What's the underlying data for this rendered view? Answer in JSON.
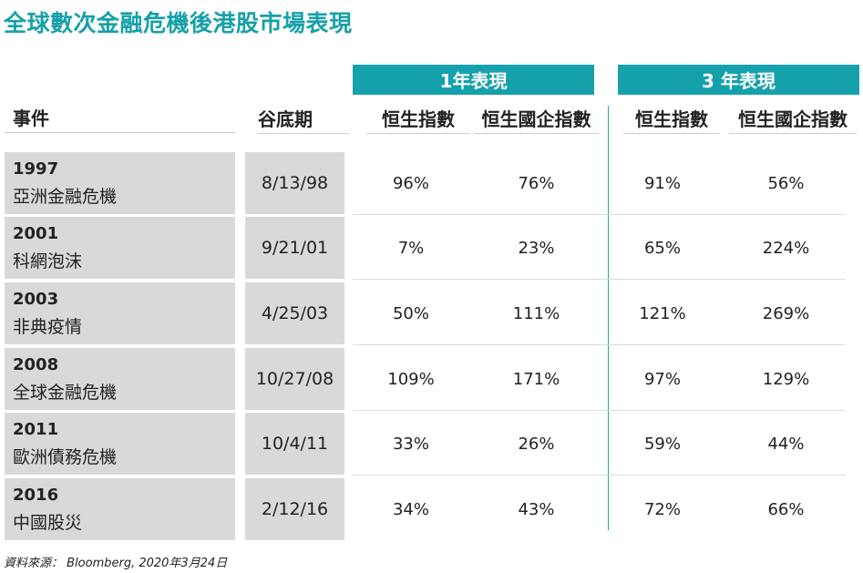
{
  "title": "全球數次金融危機後港股市場表現",
  "group_headers": [
    "1年表現",
    "3 年表現"
  ],
  "columns": {
    "event": "事件",
    "trough": "谷底期",
    "hsi_1y": "恒生指數",
    "hscei_1y": "恒生國企指數",
    "hsi_3y": "恒生指數",
    "hscei_3y": "恒生國企指數"
  },
  "rows": [
    {
      "year": "1997",
      "event": "亞洲金融危機",
      "trough": "8/13/98",
      "hsi_1y": "96%",
      "hscei_1y": "76%",
      "hsi_3y": "91%",
      "hscei_3y": "56%"
    },
    {
      "year": "2001",
      "event": "科網泡沫",
      "trough": "9/21/01",
      "hsi_1y": "7%",
      "hscei_1y": "23%",
      "hsi_3y": "65%",
      "hscei_3y": "224%"
    },
    {
      "year": "2003",
      "event": "非典疫情",
      "trough": "4/25/03",
      "hsi_1y": "50%",
      "hscei_1y": "111%",
      "hsi_3y": "121%",
      "hscei_3y": "269%"
    },
    {
      "year": "2008",
      "event": "全球金融危機",
      "trough": "10/27/08",
      "hsi_1y": "109%",
      "hscei_1y": "171%",
      "hsi_3y": "97%",
      "hscei_3y": "129%"
    },
    {
      "year": "2011",
      "event": "歐洲債務危機",
      "trough": "10/4/11",
      "hsi_1y": "33%",
      "hscei_1y": "26%",
      "hsi_3y": "59%",
      "hscei_3y": "44%"
    },
    {
      "year": "2016",
      "event": "中國股災",
      "trough": "2/12/16",
      "hsi_1y": "34%",
      "hscei_1y": "43%",
      "hsi_3y": "72%",
      "hscei_3y": "66%"
    }
  ],
  "source": "資料來源： Bloomberg, 2020年3月24日",
  "colors": {
    "accent": "#15a1ac",
    "cell_bg": "#d9d9d9"
  }
}
